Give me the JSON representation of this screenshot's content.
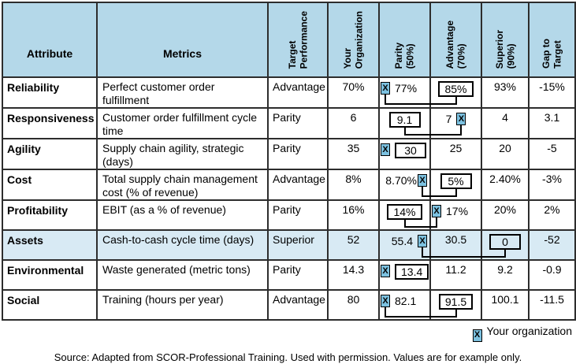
{
  "colors": {
    "header_bg": "#b4d8e9",
    "shaded_row_bg": "#d8eaf4",
    "marker_bg": "#7cc1e0",
    "grid": "#2d2d2d"
  },
  "table": {
    "columns": [
      {
        "key": "attribute",
        "label": "Attribute",
        "rotated": false
      },
      {
        "key": "metric",
        "label": "Metrics",
        "rotated": false
      },
      {
        "key": "target",
        "label": "Target\nPerformance",
        "rotated": true
      },
      {
        "key": "yourorg",
        "label": "Your\nOrganization",
        "rotated": true
      },
      {
        "key": "parity",
        "label": "Parity\n(50%)",
        "rotated": true
      },
      {
        "key": "advantage",
        "label": "Advantage\n(70%)",
        "rotated": true
      },
      {
        "key": "superior",
        "label": "Superior\n(90%)",
        "rotated": true
      },
      {
        "key": "gap",
        "label": "Gap to\nTarget",
        "rotated": true
      }
    ],
    "rows": [
      {
        "attribute": "Reliability",
        "metric": "Perfect customer order fulfillment",
        "target": "Advantage",
        "yourorg": "70%",
        "parity": {
          "text": "77%",
          "marker": "before",
          "align": "left"
        },
        "advantage": {
          "text": "85%",
          "boxed": true,
          "align": "center"
        },
        "superior": "93%",
        "gap": "-15%",
        "shaded": false,
        "connector": {
          "from": "parity",
          "to": "advantage"
        }
      },
      {
        "attribute": "Responsiveness",
        "metric": "Customer order fulfillment cycle time",
        "target": "Parity",
        "yourorg": "6",
        "parity": {
          "text": "9.1",
          "boxed": true,
          "align": "center"
        },
        "advantage": {
          "text": "7",
          "marker": "after",
          "align": "center"
        },
        "superior": "4",
        "gap": "3.1",
        "shaded": false,
        "connector": {
          "from": "parity",
          "to": "advantage"
        }
      },
      {
        "attribute": "Agility",
        "metric": "Supply chain agility, strategic (days)",
        "target": "Parity",
        "yourorg": "35",
        "parity": {
          "text": "30",
          "marker": "before",
          "boxed": true,
          "align": "left"
        },
        "advantage": "25",
        "superior": "20",
        "gap": "-5",
        "shaded": false
      },
      {
        "attribute": "Cost",
        "metric": "Total supply chain management cost (% of revenue)",
        "target": "Advantage",
        "yourorg": "8%",
        "parity": {
          "text": "8.70%",
          "marker": "after",
          "align": "right",
          "tight": true
        },
        "advantage": {
          "text": "5%",
          "boxed": true,
          "align": "center"
        },
        "superior": "2.40%",
        "gap": "-3%",
        "shaded": false,
        "connector": {
          "from": "parity",
          "to": "advantage"
        }
      },
      {
        "attribute": "Profitability",
        "metric": "EBIT (as a % of revenue)",
        "target": "Parity",
        "yourorg": "16%",
        "parity": {
          "text": "14%",
          "boxed": true,
          "align": "center"
        },
        "advantage": {
          "text": "17%",
          "marker": "before",
          "align": "left"
        },
        "superior": "20%",
        "gap": "2%",
        "shaded": false,
        "connector": {
          "from": "parity",
          "to": "advantage"
        }
      },
      {
        "attribute": "Assets",
        "metric": "Cash-to-cash cycle time (days)",
        "target": "Superior",
        "yourorg": "52",
        "parity": {
          "text": "55.4",
          "marker": "after",
          "align": "right"
        },
        "advantage": "30.5",
        "superior": {
          "text": "0",
          "boxed": true,
          "align": "center"
        },
        "gap": "-52",
        "shaded": true,
        "connector": {
          "from": "parity",
          "to": "superior"
        }
      },
      {
        "attribute": "Environmental",
        "metric": "Waste generated (metric tons)",
        "target": "Parity",
        "yourorg": "14.3",
        "parity": {
          "text": "13.4",
          "marker": "before",
          "boxed": true,
          "align": "left"
        },
        "advantage": "11.2",
        "superior": "9.2",
        "gap": "-0.9",
        "shaded": false
      },
      {
        "attribute": "Social",
        "metric": "Training (hours per year)",
        "target": "Advantage",
        "yourorg": "80",
        "parity": {
          "text": "82.1",
          "marker": "before",
          "align": "left"
        },
        "advantage": {
          "text": "91.5",
          "boxed": true,
          "align": "center"
        },
        "superior": "100.1",
        "gap": "-11.5",
        "shaded": false,
        "connector": {
          "from": "parity",
          "to": "advantage"
        }
      }
    ]
  },
  "legend": {
    "marker_text": "X",
    "label": "Your organization"
  },
  "source_note": "Source: Adapted from SCOR-Professional Training. Used with permission. Values are for example only."
}
